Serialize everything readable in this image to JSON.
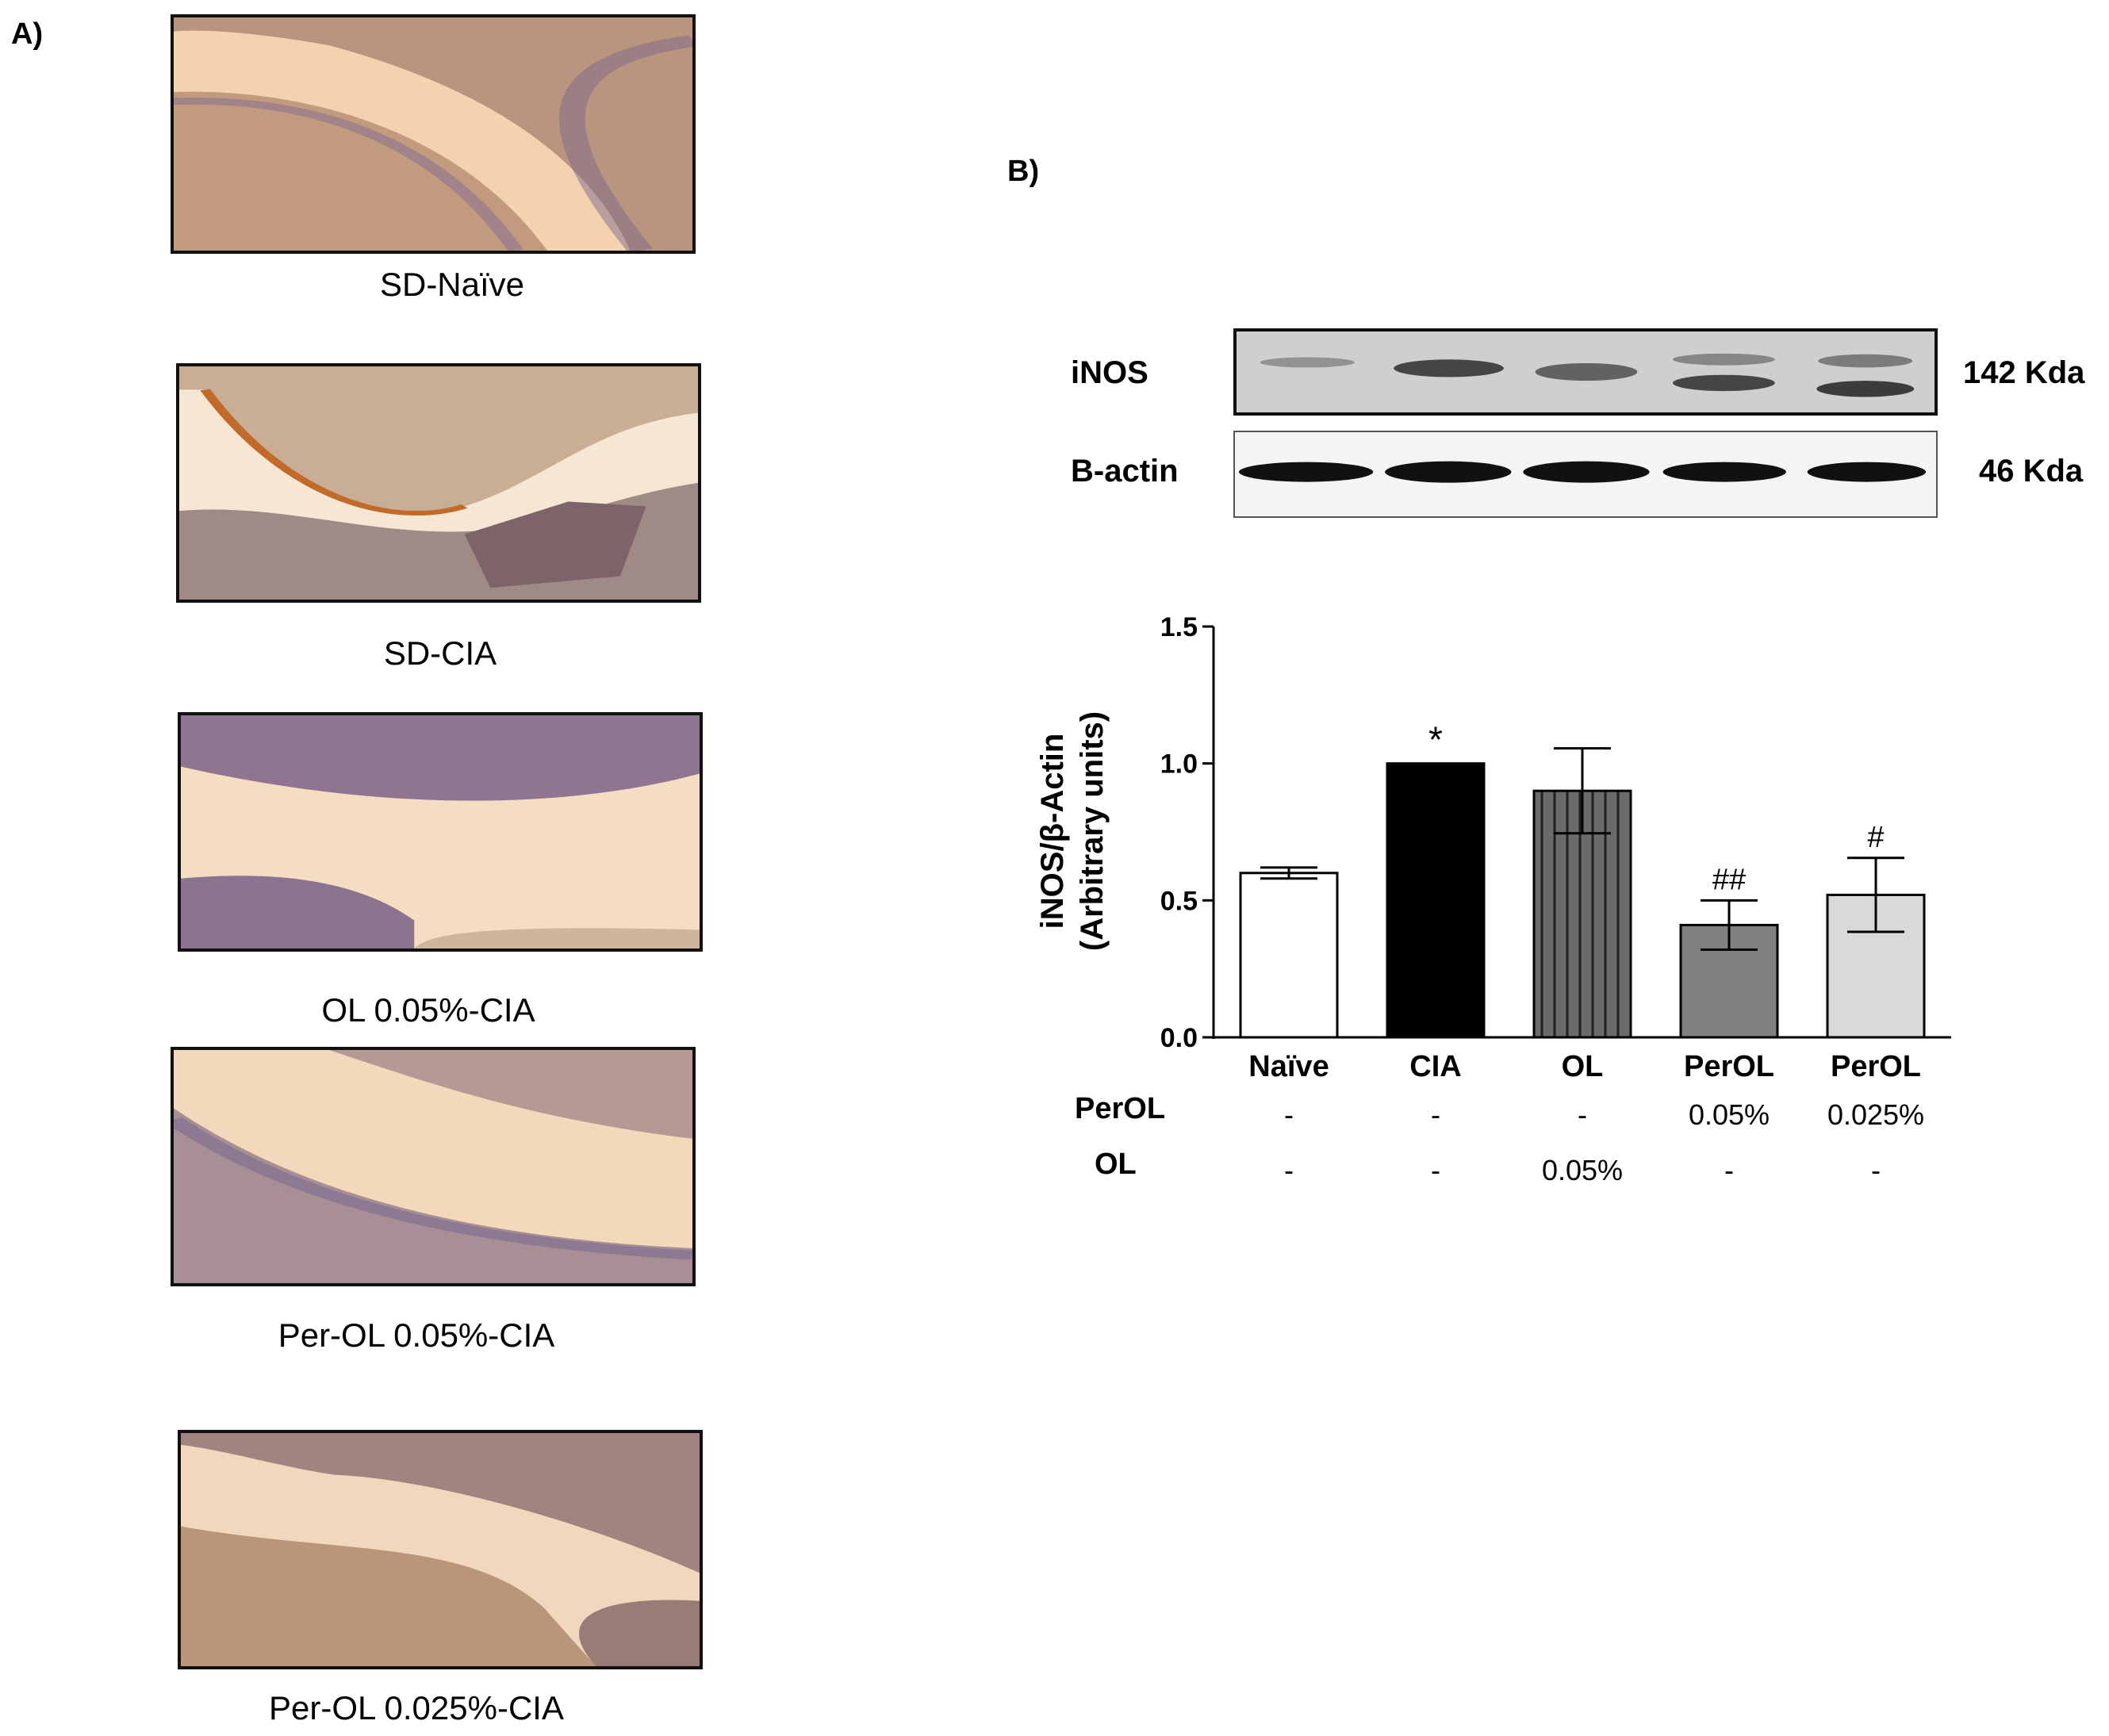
{
  "panels": {
    "a_label": "A)",
    "b_label": "B)"
  },
  "micrographs": [
    {
      "caption": "SD-Naïve"
    },
    {
      "caption": "SD-CIA"
    },
    {
      "caption": "OL 0.05%-CIA"
    },
    {
      "caption": "Per-OL 0.05%-CIA"
    },
    {
      "caption": "Per-OL 0.025%-CIA"
    }
  ],
  "western_blot": {
    "rows": [
      {
        "protein": "iNOS",
        "weight": "142 Kda"
      },
      {
        "protein": "B-actin",
        "weight": "46 Kda"
      }
    ]
  },
  "chart_data": {
    "type": "bar",
    "ylabel_line1": "iNOS/β-Actin",
    "ylabel_line2": "(Arbitrary units)",
    "ylim": [
      0,
      1.5
    ],
    "yticks": [
      "0.0",
      "0.5",
      "1.0",
      "1.5"
    ],
    "categories": [
      "Naïve",
      "CIA",
      "OL",
      "PerOL",
      "PerOL"
    ],
    "values": [
      0.6,
      1.0,
      0.9,
      0.41,
      0.52
    ],
    "errors": [
      0.02,
      0.0,
      0.155,
      0.09,
      0.135
    ],
    "significance": [
      "",
      "*",
      "",
      "##",
      "#"
    ],
    "fills": [
      "#ffffff",
      "#000000",
      "#666666",
      "#808080",
      "#d9d9d9"
    ],
    "treatment_rows": [
      {
        "label": "PerOL",
        "values": [
          "-",
          "-",
          "-",
          "0.05%",
          "0.025%"
        ]
      },
      {
        "label": "OL",
        "values": [
          "-",
          "-",
          "0.05%",
          "-",
          "-"
        ]
      }
    ]
  }
}
